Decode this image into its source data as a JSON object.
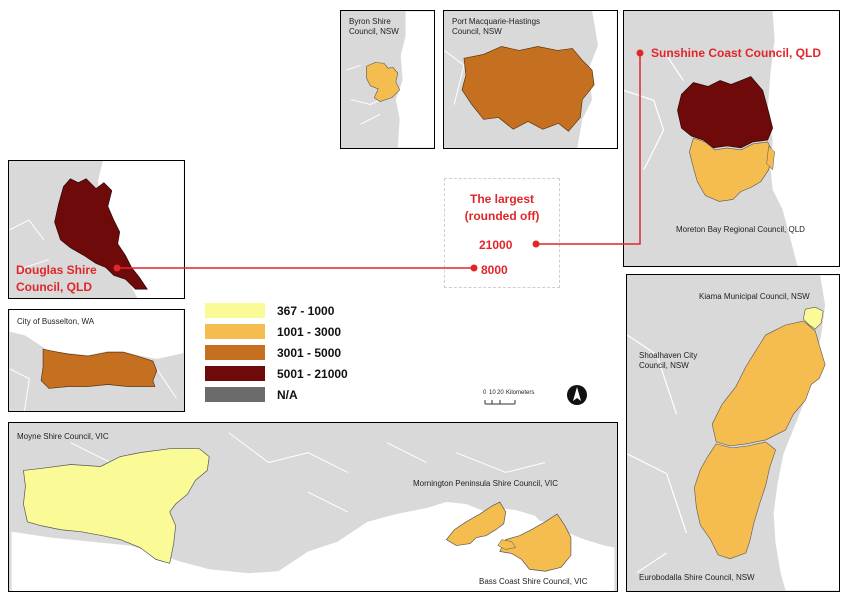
{
  "insets": {
    "byron": {
      "name": "Byron Shire\nCouncil, NSW",
      "class": "1001 - 3000",
      "color": "#f5bd50"
    },
    "port": {
      "name": "Port Macquarie-Hastings\nCouncil, NSW",
      "class": "3001 - 5000",
      "color": "#c47020"
    },
    "sunshine": {
      "name": "Sunshine Coast Council, QLD",
      "class": "5001 - 21000",
      "color": "#6e0a0a"
    },
    "moreton": {
      "name": "Moreton Bay Regional Council, QLD",
      "class": "1001 - 3000",
      "color": "#f5bd50"
    },
    "douglas": {
      "name": "Douglas Shire\nCouncil, QLD",
      "class": "5001 - 21000",
      "color": "#6e0a0a"
    },
    "busselton": {
      "name": "City of Busselton, WA",
      "class": "3001 - 5000",
      "color": "#c47020"
    },
    "kiama": {
      "name": "Kiama Municipal Council, NSW",
      "class": "367 - 1000",
      "color": "#fafa96"
    },
    "shoalhaven": {
      "name": "Shoalhaven City\nCouncil, NSW",
      "class": "1001 - 3000",
      "color": "#f5bd50"
    },
    "eurobodalla": {
      "name": "Eurobodalla Shire Council, NSW",
      "class": "1001 - 3000",
      "color": "#f5bd50"
    },
    "moyne": {
      "name": "Moyne Shire Council, VIC",
      "class": "367 - 1000",
      "color": "#fafa96"
    },
    "mornington": {
      "name": "Mornington Peninsula Shire Council, VIC",
      "class": "1001 - 3000",
      "color": "#f5bd50"
    },
    "bass": {
      "name": "Bass Coast Shire Council, VIC",
      "class": "1001 - 3000",
      "color": "#f5bd50"
    }
  },
  "legend": [
    {
      "label": "367 - 1000",
      "color": "#fafa96"
    },
    {
      "label": "1001 - 3000",
      "color": "#f5bd50"
    },
    {
      "label": "3001 - 5000",
      "color": "#c47020"
    },
    {
      "label": "5001 - 21000",
      "color": "#6e0a0a"
    },
    {
      "label": "N/A",
      "color": "#6b6b6b"
    }
  ],
  "callout": {
    "title": "The largest\n(rounded off)",
    "value_sunshine": "21000",
    "value_douglas": "8000"
  },
  "scale": {
    "ticks": [
      "0",
      "10",
      "20"
    ],
    "unit": "Kilometers"
  },
  "colors": {
    "land": "#d9d9d9",
    "sea": "#ffffff",
    "accent": "#e1262b"
  }
}
